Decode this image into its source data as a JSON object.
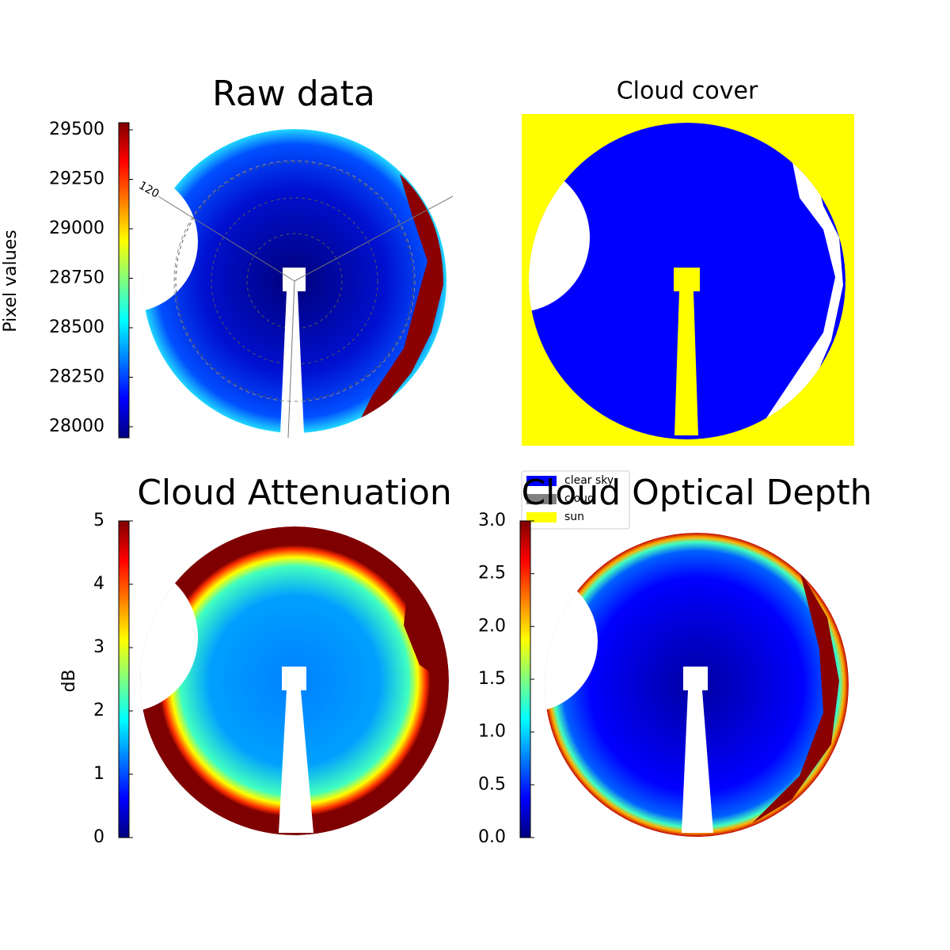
{
  "chart_data": [
    {
      "type": "image",
      "title": "Raw data",
      "ylabel": "Pixel values",
      "colormap": "jet",
      "ylim": [
        27944,
        29536
      ],
      "yticks": [
        28000,
        28250,
        28500,
        28750,
        29000,
        29250,
        29500
      ],
      "annotation": "120"
    },
    {
      "type": "image",
      "title": "Cloud cover",
      "legend": [
        {
          "name": "clear sky",
          "color": "#0000ff"
        },
        {
          "name": "cloud",
          "color": "#808080"
        },
        {
          "name": "sun",
          "color": "#ffff00"
        }
      ]
    },
    {
      "type": "image",
      "title": "Cloud Attenuation",
      "ylabel": "dB",
      "colormap": "jet",
      "ylim": [
        0,
        5
      ],
      "yticks": [
        0,
        1,
        2,
        3,
        4,
        5
      ]
    },
    {
      "type": "image",
      "title": "Cloud Optical Depth",
      "colormap": "jet",
      "ylim": [
        0,
        3
      ],
      "yticks": [
        {
          "value": 0,
          "label": "0.0"
        },
        0.5,
        {
          "value": 1,
          "label": "1.0"
        },
        1.5,
        {
          "value": 2,
          "label": "2.0"
        },
        2.5,
        {
          "value": 3,
          "label": "3.0"
        }
      ]
    }
  ]
}
